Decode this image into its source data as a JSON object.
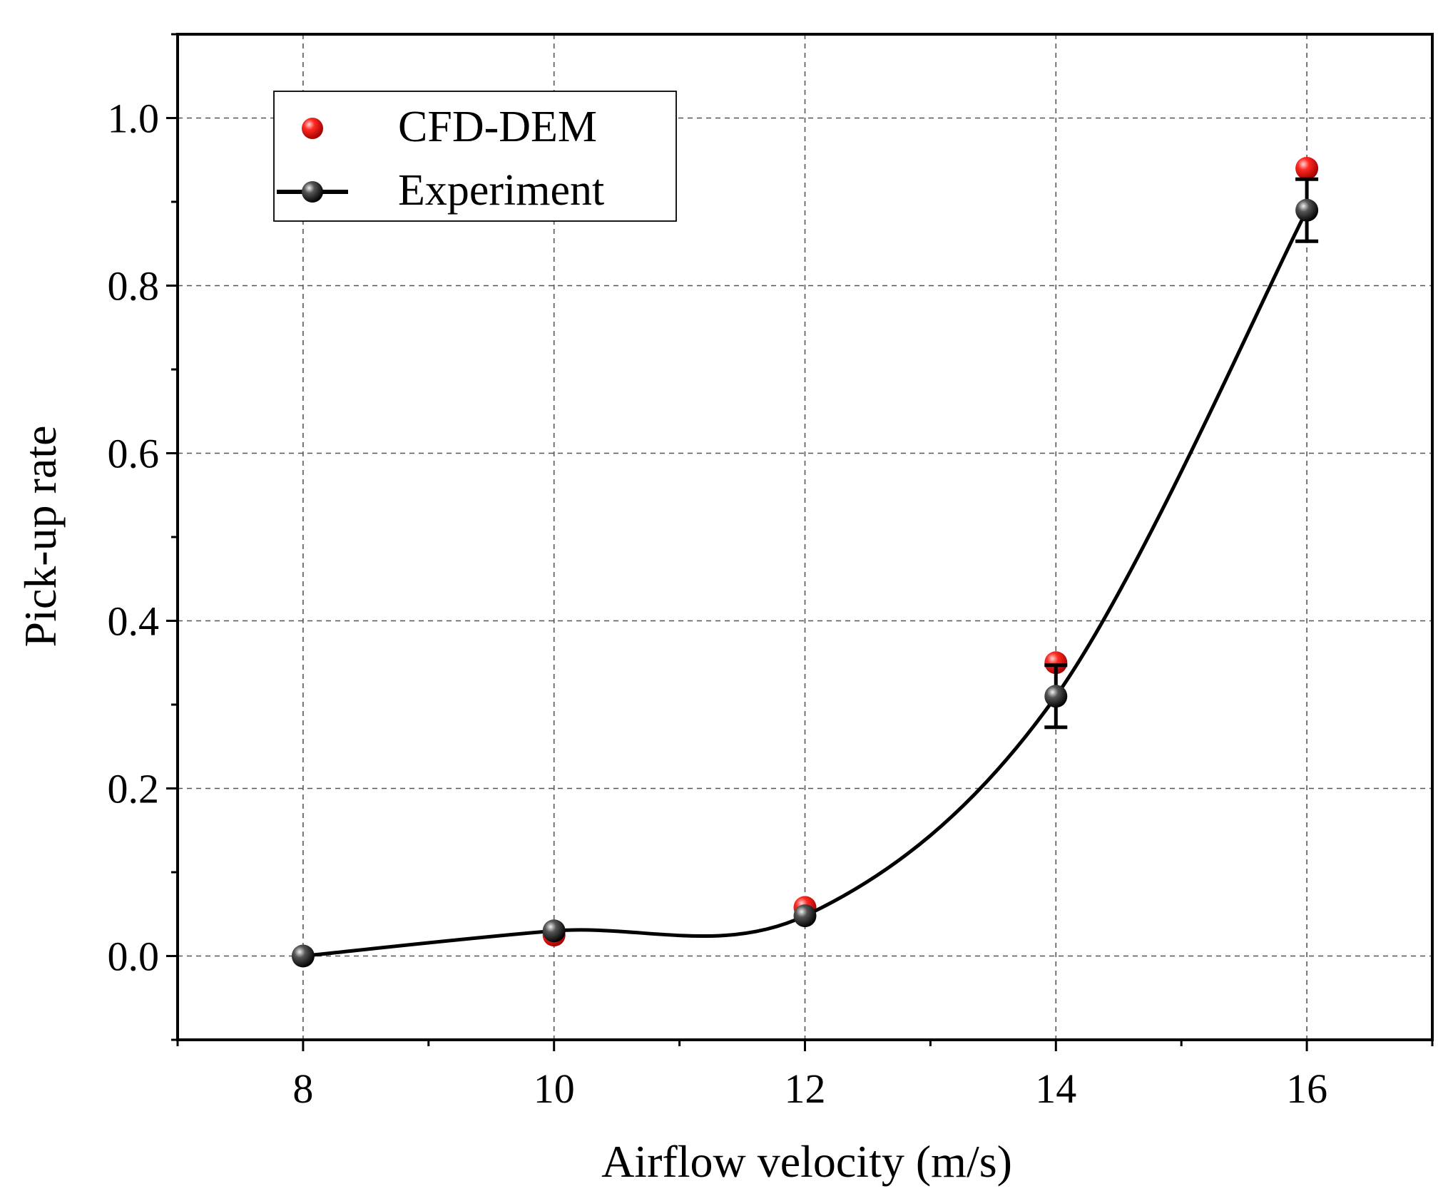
{
  "chart_data": {
    "type": "scatter",
    "title": "",
    "xlabel": "Airflow velocity (m/s)",
    "ylabel": "Pick-up rate",
    "xlim": [
      7,
      17
    ],
    "ylim": [
      -0.1,
      1.1
    ],
    "x_ticks": [
      8,
      10,
      12,
      14,
      16
    ],
    "x_tick_labels": [
      "8",
      "10",
      "12",
      "14",
      "16"
    ],
    "y_ticks": [
      0.0,
      0.2,
      0.4,
      0.6,
      0.8,
      1.0
    ],
    "y_tick_labels": [
      "0.0",
      "0.2",
      "0.4",
      "0.6",
      "0.8",
      "1.0"
    ],
    "grid": true,
    "legend_position": "top-left",
    "series": [
      {
        "name": "CFD-DEM",
        "style": "markers",
        "color": "#e8140f",
        "x": [
          10,
          12,
          14,
          16
        ],
        "values": [
          0.025,
          0.058,
          0.35,
          0.94
        ]
      },
      {
        "name": "Experiment",
        "style": "smooth-line-markers",
        "color": "#000000",
        "x": [
          8,
          10,
          12,
          14,
          16
        ],
        "values": [
          0.0,
          0.03,
          0.048,
          0.31,
          0.89
        ],
        "error": [
          0,
          0,
          0,
          0.037,
          0.037
        ]
      }
    ]
  }
}
